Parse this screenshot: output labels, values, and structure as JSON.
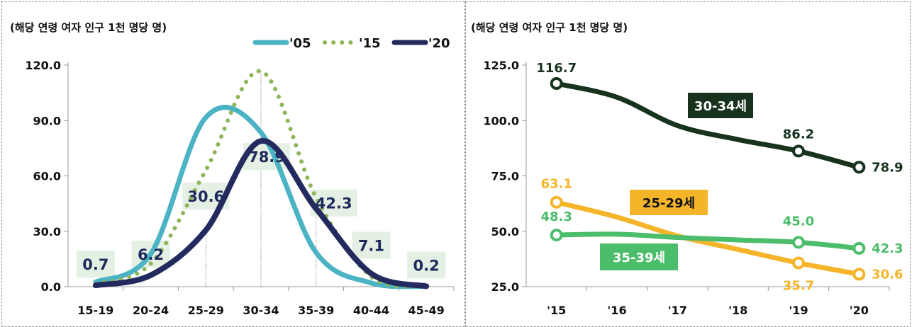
{
  "left": {
    "unit_label": "(해당 연령 여자 인구 1천 명당 명)",
    "colors": {
      "05": "#4bb3c4",
      "15": "#8fb55a",
      "20": "#232a5e",
      "label_bg": "#e4f0e3"
    },
    "chart_data": {
      "type": "line",
      "categories": [
        "15-19",
        "20-24",
        "25-29",
        "30-34",
        "35-39",
        "40-44",
        "45-49"
      ],
      "ylim": [
        0,
        120
      ],
      "y_ticks": [
        "0.0",
        "30.0",
        "60.0",
        "90.0",
        "120.0"
      ],
      "series": [
        {
          "name": "'05",
          "values": [
            2.5,
            17.7,
            91.7,
            83.5,
            18.5,
            2.0,
            0.1
          ]
        },
        {
          "name": "'15",
          "values": [
            1.4,
            12.5,
            63.1,
            116.7,
            48.3,
            5.4,
            0.2
          ]
        },
        {
          "name": "'20",
          "values": [
            0.7,
            6.2,
            30.6,
            78.9,
            42.3,
            7.1,
            0.2
          ]
        }
      ],
      "data_labels": [
        "0.7",
        "6.2",
        "30.6",
        "78.9",
        "42.3",
        "7.1",
        "0.2"
      ]
    }
  },
  "right": {
    "unit_label": "(해당 연령 여자 인구 1천 명당 명)",
    "colors": {
      "30-34": "#17331d",
      "25-29": "#f5b52a",
      "35-39": "#4cbd6b"
    },
    "chart_data": {
      "type": "line",
      "categories": [
        "'15",
        "'16",
        "'17",
        "'18",
        "'19",
        "'20"
      ],
      "ylim": [
        25,
        125
      ],
      "y_ticks": [
        "25.0",
        "50.0",
        "75.0",
        "100.0",
        "125.0"
      ],
      "series": [
        {
          "name": "30-34세",
          "values": [
            116.7,
            110.5,
            97.7,
            91.4,
            86.2,
            78.9
          ],
          "labels": {
            "0": "116.7",
            "4": "86.2",
            "5": "78.9"
          }
        },
        {
          "name": "25-29세",
          "values": [
            63.1,
            56.4,
            47.9,
            41.8,
            35.7,
            30.6
          ],
          "labels": {
            "0": "63.1",
            "4": "35.7",
            "5": "30.6"
          }
        },
        {
          "name": "35-39세",
          "values": [
            48.3,
            48.7,
            47.2,
            46.1,
            45.0,
            42.3
          ],
          "labels": {
            "0": "48.3",
            "4": "45.0",
            "5": "42.3"
          }
        }
      ]
    }
  }
}
